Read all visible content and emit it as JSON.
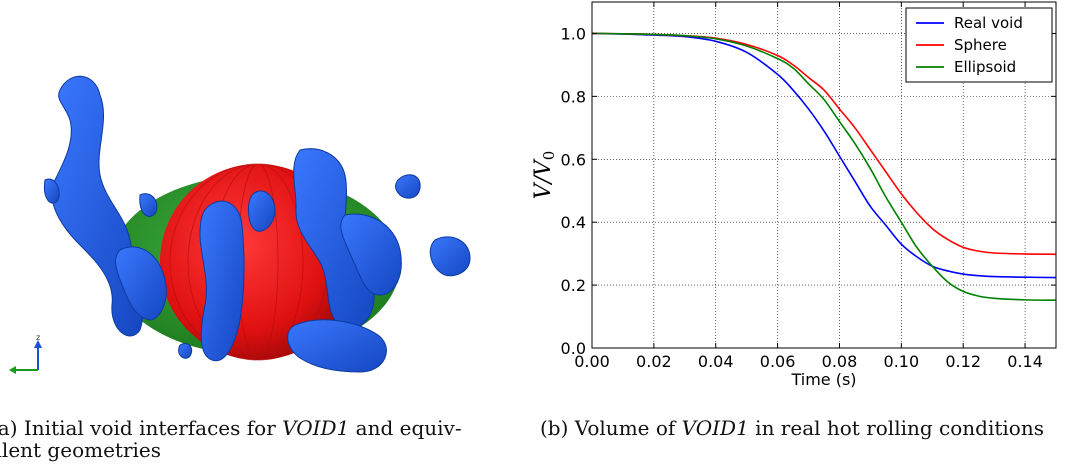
{
  "figure_a": {
    "caption_prefix": "(a) Initial void interfaces for ",
    "caption_em": "VOID1",
    "caption_line1_suffix": " and equiv-",
    "caption_line2": "alent geometries",
    "axis_triad_label": "z",
    "colors": {
      "void": "#1f5fe0",
      "sphere": "#e01515",
      "ellipsoid": "#2a9a2a"
    }
  },
  "figure_b": {
    "caption_prefix": "(b) Volume of ",
    "caption_em": "VOID1",
    "caption_suffix": " in real hot rolling conditions"
  },
  "chart_data": {
    "type": "line",
    "title": "",
    "xlabel": "Time (s)",
    "ylabel_main": "V/V",
    "ylabel_sub": "0",
    "xlim": [
      0.0,
      0.15
    ],
    "ylim": [
      0.0,
      1.1
    ],
    "xticks": [
      "0.00",
      "0.02",
      "0.04",
      "0.06",
      "0.08",
      "0.10",
      "0.12",
      "0.14"
    ],
    "xtick_values": [
      0.0,
      0.02,
      0.04,
      0.06,
      0.08,
      0.1,
      0.12,
      0.14
    ],
    "yticks": [
      "0.0",
      "0.2",
      "0.4",
      "0.6",
      "0.8",
      "1.0"
    ],
    "ytick_values": [
      0.0,
      0.2,
      0.4,
      0.6,
      0.8,
      1.0
    ],
    "grid": true,
    "legend_position": "top-right",
    "series": [
      {
        "name": "Real void",
        "color": "#0000ff",
        "x": [
          0.0,
          0.01,
          0.02,
          0.03,
          0.04,
          0.05,
          0.06,
          0.065,
          0.07,
          0.075,
          0.08,
          0.085,
          0.09,
          0.095,
          0.1,
          0.105,
          0.11,
          0.115,
          0.12,
          0.125,
          0.13,
          0.14,
          0.15
        ],
        "y": [
          1.0,
          0.998,
          0.995,
          0.99,
          0.975,
          0.94,
          0.87,
          0.82,
          0.76,
          0.69,
          0.61,
          0.53,
          0.45,
          0.39,
          0.33,
          0.29,
          0.26,
          0.245,
          0.235,
          0.23,
          0.227,
          0.225,
          0.224
        ]
      },
      {
        "name": "Sphere",
        "color": "#ff0000",
        "x": [
          0.0,
          0.01,
          0.02,
          0.03,
          0.04,
          0.05,
          0.06,
          0.065,
          0.07,
          0.075,
          0.08,
          0.085,
          0.09,
          0.095,
          0.1,
          0.105,
          0.11,
          0.115,
          0.12,
          0.125,
          0.13,
          0.14,
          0.15
        ],
        "y": [
          1.0,
          0.999,
          0.997,
          0.993,
          0.985,
          0.965,
          0.93,
          0.9,
          0.86,
          0.82,
          0.76,
          0.7,
          0.63,
          0.56,
          0.49,
          0.43,
          0.38,
          0.345,
          0.32,
          0.308,
          0.302,
          0.299,
          0.298
        ]
      },
      {
        "name": "Ellipsoid",
        "color": "#008000",
        "x": [
          0.0,
          0.01,
          0.02,
          0.03,
          0.04,
          0.05,
          0.06,
          0.065,
          0.07,
          0.075,
          0.08,
          0.085,
          0.09,
          0.095,
          0.1,
          0.105,
          0.11,
          0.115,
          0.12,
          0.125,
          0.13,
          0.14,
          0.15
        ],
        "y": [
          1.0,
          0.999,
          0.997,
          0.993,
          0.983,
          0.96,
          0.92,
          0.89,
          0.84,
          0.79,
          0.72,
          0.65,
          0.57,
          0.48,
          0.4,
          0.32,
          0.26,
          0.21,
          0.18,
          0.165,
          0.158,
          0.153,
          0.152
        ]
      }
    ]
  }
}
